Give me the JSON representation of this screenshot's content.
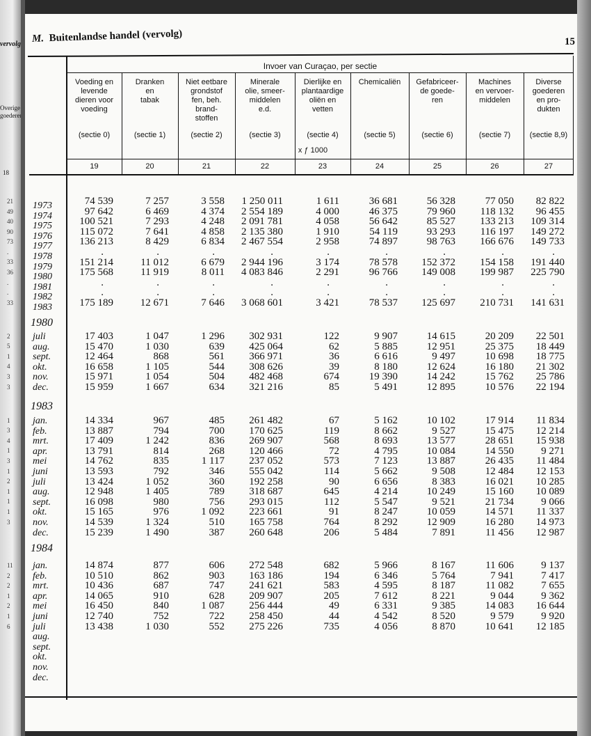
{
  "header": {
    "section_letter": "M.",
    "title": "Buitenlandse handel (vervolg)",
    "page_number": "15"
  },
  "previous_page": {
    "fragment_title": "vervolg",
    "fragment_heading": "Overige goederen",
    "fragment_colnum": "18",
    "fragment_values": [
      "21",
      "49",
      "40",
      "90",
      "73",
      ".",
      "33",
      "36",
      ".",
      ".",
      "33",
      "2",
      "5",
      "1",
      "4",
      "3",
      "3",
      "1",
      "3",
      "4",
      "1",
      "3",
      "1",
      "2",
      "1",
      "1",
      "1",
      "3",
      "11",
      "2",
      "2",
      "1",
      "2",
      "1",
      "6",
      "5"
    ]
  },
  "table": {
    "super_header": "Invoer van Curaçao, per sectie",
    "unit": "x ƒ 1000",
    "columns": [
      {
        "label": "Voeding en\nlevende\ndieren voor\nvoeding",
        "sectie": "(sectie 0)",
        "number": "19"
      },
      {
        "label": "Dranken\nen\ntabak",
        "sectie": "(sectie 1)",
        "number": "20"
      },
      {
        "label": "Niet eetbare\ngrondstof\nfen, beh.\nbrand-\nstoffen",
        "sectie": "(sectie 2)",
        "number": "21"
      },
      {
        "label": "Minerale\nolie, smeer-\nmiddelen\ne.d.",
        "sectie": "(sectie 3)",
        "number": "22"
      },
      {
        "label": "Dierlijke en\nplantaardige\noliën en\nvetten",
        "sectie": "(sectie 4)",
        "number": "23"
      },
      {
        "label": "Chemicaliën",
        "sectie": "(sectie 5)",
        "number": "24"
      },
      {
        "label": "Gefabriceer-\nde goede-\nren",
        "sectie": "(sectie 6)",
        "number": "25"
      },
      {
        "label": "Machines\nen vervoer-\nmiddelen",
        "sectie": "(sectie 7)",
        "number": "26"
      },
      {
        "label": "Diverse\ngoederen\nen pro-\ndukten",
        "sectie": "(sectie 8,9)",
        "number": "27"
      }
    ],
    "sections": [
      {
        "title": "",
        "rows": [
          {
            "label": "1973",
            "values": [
              "74 539",
              "7 257",
              "3 558",
              "1 250 011",
              "1 611",
              "36 681",
              "56 328",
              "77 050",
              "82 822"
            ]
          },
          {
            "label": "1974",
            "values": [
              "97 642",
              "6 469",
              "4 374",
              "2 554 189",
              "4 000",
              "46 375",
              "79 960",
              "118 132",
              "96 455"
            ]
          },
          {
            "label": "1975",
            "values": [
              "100 521",
              "7 293",
              "4 248",
              "2 091 781",
              "4 058",
              "56 642",
              "85 527",
              "133 213",
              "109 314"
            ]
          },
          {
            "label": "1976",
            "values": [
              "115 072",
              "7 641",
              "4 858",
              "2 135 380",
              "1 910",
              "54 119",
              "93 293",
              "116 197",
              "149 272"
            ]
          },
          {
            "label": "1977",
            "values": [
              "136 213",
              "8 429",
              "6 834",
              "2 467 554",
              "2 958",
              "74 897",
              "98 763",
              "166 676",
              "149 733"
            ]
          },
          {
            "label": "1978",
            "values": [
              ".",
              ".",
              ".",
              ".",
              ".",
              ".",
              ".",
              ".",
              "."
            ]
          },
          {
            "label": "1979",
            "values": [
              "151 214",
              "11 012",
              "6 679",
              "2 944 196",
              "3 174",
              "78 578",
              "152 372",
              "154 158",
              "191 440"
            ]
          },
          {
            "label": "1980",
            "values": [
              "175 568",
              "11 919",
              "8 011",
              "4 083 846",
              "2 291",
              "96 766",
              "149 008",
              "199 987",
              "225 790"
            ]
          },
          {
            "label": "1981",
            "values": [
              ".",
              ".",
              ".",
              ".",
              ".",
              ".",
              ".",
              ".",
              "."
            ]
          },
          {
            "label": "1982",
            "values": [
              ".",
              ".",
              ".",
              ".",
              ".",
              ".",
              ".",
              ".",
              "."
            ]
          },
          {
            "label": "1983",
            "values": [
              "175 189",
              "12 671",
              "7 646",
              "3 068 601",
              "3 421",
              "78 537",
              "125 697",
              "210 731",
              "141 631"
            ]
          }
        ]
      },
      {
        "title": "1980",
        "rows": [
          {
            "label": "juli",
            "values": [
              "17 403",
              "1 047",
              "1 296",
              "302 931",
              "122",
              "9 907",
              "14 615",
              "20 209",
              "22 501"
            ]
          },
          {
            "label": "aug.",
            "values": [
              "15 470",
              "1 030",
              "639",
              "425 064",
              "62",
              "5 885",
              "12 951",
              "25 375",
              "18 449"
            ]
          },
          {
            "label": "sept.",
            "values": [
              "12 464",
              "868",
              "561",
              "366 971",
              "36",
              "6 616",
              "9 497",
              "10 698",
              "18 775"
            ]
          },
          {
            "label": "okt.",
            "values": [
              "16 658",
              "1 105",
              "544",
              "308 626",
              "39",
              "8 180",
              "12 624",
              "16 180",
              "21 302"
            ]
          },
          {
            "label": "nov.",
            "values": [
              "15 971",
              "1 054",
              "504",
              "482 468",
              "674",
              "19 390",
              "14 242",
              "15 762",
              "25 786"
            ]
          },
          {
            "label": "dec.",
            "values": [
              "15 959",
              "1 667",
              "634",
              "321 216",
              "85",
              "5 491",
              "12 895",
              "10 576",
              "22 194"
            ]
          }
        ]
      },
      {
        "title": "1983",
        "rows": [
          {
            "label": "jan.",
            "values": [
              "14 334",
              "967",
              "485",
              "261 482",
              "67",
              "5 162",
              "10 102",
              "17 914",
              "11 834"
            ]
          },
          {
            "label": "feb.",
            "values": [
              "13 887",
              "794",
              "700",
              "170 625",
              "119",
              "8 662",
              "9 527",
              "15 475",
              "12 214"
            ]
          },
          {
            "label": "mrt.",
            "values": [
              "17 409",
              "1 242",
              "836",
              "269 907",
              "568",
              "8 693",
              "13 577",
              "28 651",
              "15 938"
            ]
          },
          {
            "label": "apr.",
            "values": [
              "13 791",
              "814",
              "268",
              "120 466",
              "72",
              "4 795",
              "10 084",
              "14 550",
              "9 271"
            ]
          },
          {
            "label": "mei",
            "values": [
              "14 762",
              "835",
              "1 117",
              "237 052",
              "573",
              "7 123",
              "13 887",
              "26 435",
              "11 484"
            ]
          },
          {
            "label": "juni",
            "values": [
              "13 593",
              "792",
              "346",
              "555 042",
              "114",
              "5 662",
              "9 508",
              "12 484",
              "12 153"
            ]
          },
          {
            "label": "juli",
            "values": [
              "13 424",
              "1 052",
              "360",
              "192 258",
              "90",
              "6 656",
              "8 383",
              "16 021",
              "10 285"
            ]
          },
          {
            "label": "aug.",
            "values": [
              "12 948",
              "1 405",
              "789",
              "318 687",
              "645",
              "4 214",
              "10 249",
              "15 160",
              "10 089"
            ]
          },
          {
            "label": "sept.",
            "values": [
              "16 098",
              "980",
              "756",
              "293 015",
              "112",
              "5 547",
              "9 521",
              "21 734",
              "9 066"
            ]
          },
          {
            "label": "okt.",
            "values": [
              "15 165",
              "976",
              "1 092",
              "223 661",
              "91",
              "8 247",
              "10 059",
              "14 571",
              "11 337"
            ]
          },
          {
            "label": "nov.",
            "values": [
              "14 539",
              "1 324",
              "510",
              "165 758",
              "764",
              "8 292",
              "12 909",
              "16 280",
              "14 973"
            ]
          },
          {
            "label": "dec.",
            "values": [
              "15 239",
              "1 490",
              "387",
              "260 648",
              "206",
              "5 484",
              "7 891",
              "11 456",
              "12 987"
            ]
          }
        ]
      },
      {
        "title": "1984",
        "rows": [
          {
            "label": "jan.",
            "values": [
              "14 874",
              "877",
              "606",
              "272 548",
              "682",
              "5 966",
              "8 167",
              "11 606",
              "9 137"
            ]
          },
          {
            "label": "feb.",
            "values": [
              "10 510",
              "862",
              "903",
              "163 186",
              "194",
              "6 346",
              "5 764",
              "7 941",
              "7 417"
            ]
          },
          {
            "label": "mrt.",
            "values": [
              "10 436",
              "687",
              "747",
              "241 621",
              "583",
              "4 595",
              "8 187",
              "11 082",
              "7 655"
            ]
          },
          {
            "label": "apr.",
            "values": [
              "14 065",
              "910",
              "628",
              "209 907",
              "205",
              "7 612",
              "8 221",
              "9 044",
              "9 362"
            ]
          },
          {
            "label": "mei",
            "values": [
              "16 450",
              "840",
              "1 087",
              "256 444",
              "49",
              "6 331",
              "9 385",
              "14 083",
              "16 644"
            ]
          },
          {
            "label": "juni",
            "values": [
              "12 740",
              "752",
              "722",
              "258 450",
              "44",
              "4 542",
              "8 520",
              "9 579",
              "9 920"
            ]
          },
          {
            "label": "juli",
            "values": [
              "13 438",
              "1 030",
              "552",
              "275 226",
              "735",
              "4 056",
              "8 870",
              "10 641",
              "12 185"
            ]
          },
          {
            "label": "aug.",
            "values": []
          },
          {
            "label": "sept.",
            "values": []
          },
          {
            "label": "okt.",
            "values": []
          },
          {
            "label": "nov.",
            "values": []
          },
          {
            "label": "dec.",
            "values": []
          }
        ]
      }
    ]
  }
}
